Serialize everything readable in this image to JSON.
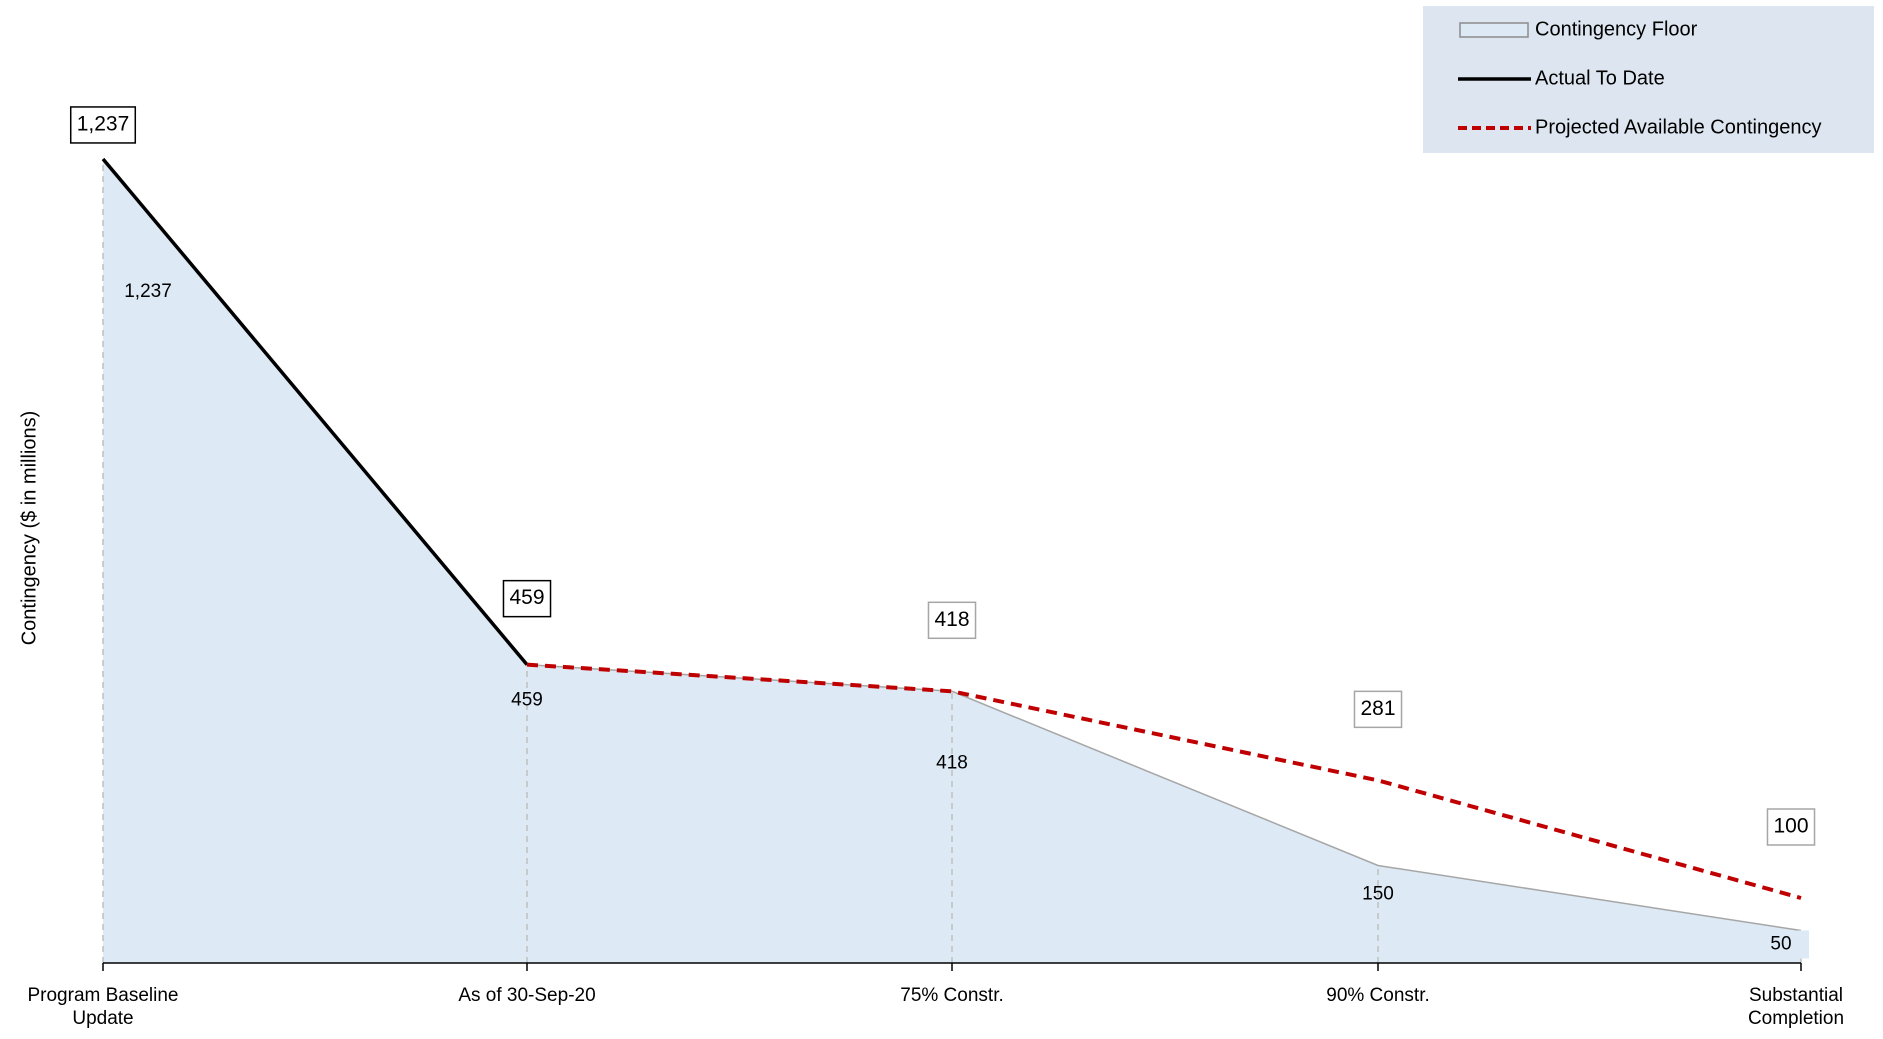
{
  "chart_data": {
    "type": "line",
    "y_label": "Contingency ($ in millions)",
    "categories": [
      "Program Baseline Update",
      "As of 30-Sep-20",
      "75% Constr.",
      "90% Constr.",
      "Substantial Completion"
    ],
    "ylim": [
      0,
      1400
    ],
    "legend": "top-right",
    "series": [
      {
        "name": "Contingency Floor",
        "style": "area",
        "color": "#dde9f5",
        "values": [
          1237,
          459,
          418,
          150,
          50
        ],
        "value_labels": [
          "1,237",
          "459",
          "418",
          "150",
          "50"
        ]
      },
      {
        "name": "Actual To Date",
        "style": "solid",
        "color": "#000000",
        "values": [
          1237,
          459,
          null,
          null,
          null
        ],
        "value_labels": [
          "1,237",
          "459",
          null,
          null,
          null
        ]
      },
      {
        "name": "Projected Available Contingency",
        "style": "dashed",
        "color": "#c00000",
        "values": [
          null,
          459,
          418,
          281,
          100
        ],
        "value_labels": [
          null,
          null,
          "418",
          "281",
          "100"
        ]
      }
    ]
  }
}
